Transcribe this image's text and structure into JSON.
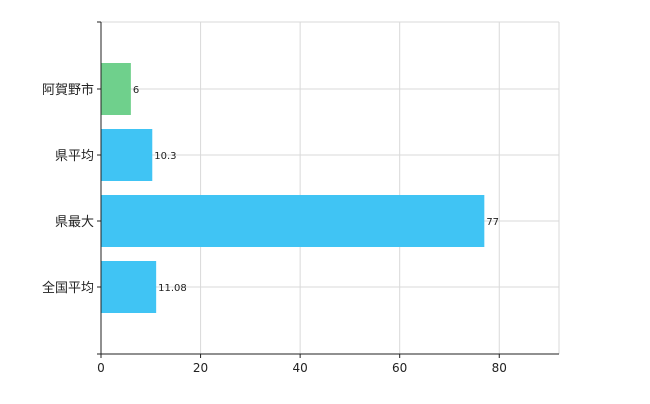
{
  "chart_data": {
    "type": "bar",
    "orientation": "horizontal",
    "categories": [
      "阿賀野市",
      "県平均",
      "県最大",
      "全国平均"
    ],
    "values": [
      6,
      10.3,
      77,
      11.08
    ],
    "value_labels": [
      "6",
      "10.3",
      "77",
      "11.08"
    ],
    "bar_colors": [
      "#6fd08c",
      "#40c4f4",
      "#40c4f4",
      "#40c4f4"
    ],
    "xlim": [
      0,
      92
    ],
    "xticks": [
      0,
      20,
      40,
      60,
      80
    ],
    "xtick_labels": [
      "0",
      "20",
      "40",
      "60",
      "80"
    ],
    "grid": true,
    "legend": "none",
    "title": "",
    "xlabel": "",
    "ylabel": ""
  }
}
